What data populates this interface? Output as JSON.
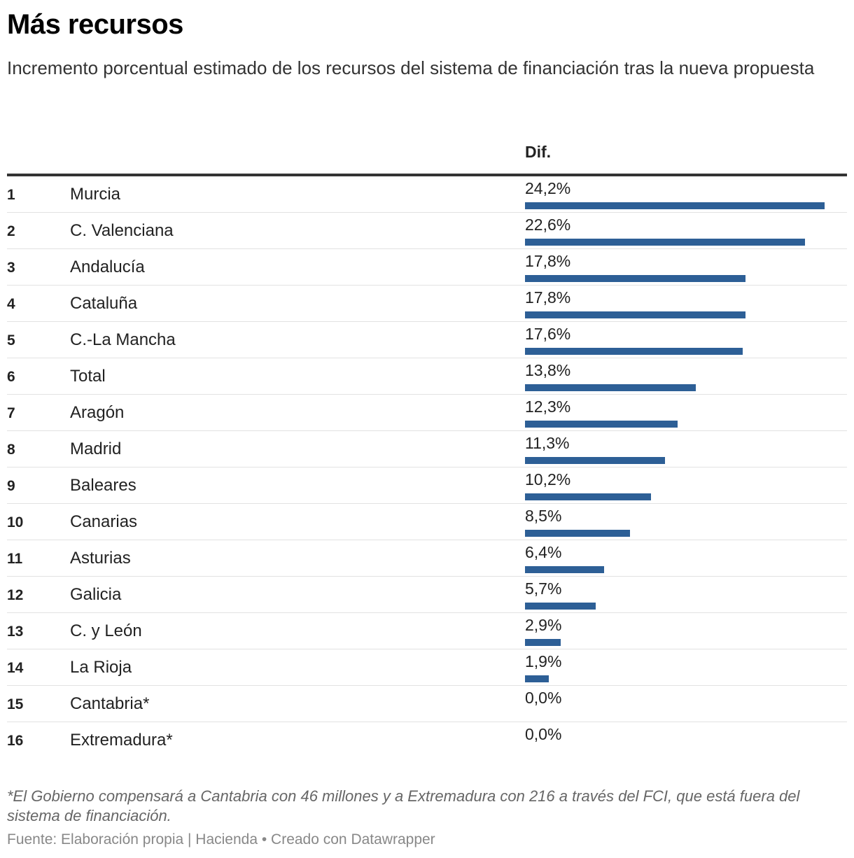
{
  "header": {
    "title": "Más recursos",
    "subtitle": "Incremento porcentual estimado de los recursos del sistema de financiación tras la nueva propuesta"
  },
  "table": {
    "value_header": "Dif."
  },
  "chart_data": {
    "type": "bar",
    "orientation": "horizontal",
    "title": "Más recursos",
    "subtitle": "Incremento porcentual estimado de los recursos del sistema de financiación tras la nueva propuesta",
    "column_header": "Dif.",
    "bar_color": "#2d5f96",
    "xlim": [
      0,
      24.2
    ],
    "rows": [
      {
        "rank": "1",
        "name": "Murcia",
        "value": 24.2,
        "label": "24,2%"
      },
      {
        "rank": "2",
        "name": "C. Valenciana",
        "value": 22.6,
        "label": "22,6%"
      },
      {
        "rank": "3",
        "name": "Andalucía",
        "value": 17.8,
        "label": "17,8%"
      },
      {
        "rank": "4",
        "name": "Cataluña",
        "value": 17.8,
        "label": "17,8%"
      },
      {
        "rank": "5",
        "name": "C.-La Mancha",
        "value": 17.6,
        "label": "17,6%"
      },
      {
        "rank": "6",
        "name": "Total",
        "value": 13.8,
        "label": "13,8%"
      },
      {
        "rank": "7",
        "name": "Aragón",
        "value": 12.3,
        "label": "12,3%"
      },
      {
        "rank": "8",
        "name": "Madrid",
        "value": 11.3,
        "label": "11,3%"
      },
      {
        "rank": "9",
        "name": "Baleares",
        "value": 10.2,
        "label": "10,2%"
      },
      {
        "rank": "10",
        "name": "Canarias",
        "value": 8.5,
        "label": "8,5%"
      },
      {
        "rank": "11",
        "name": "Asturias",
        "value": 6.4,
        "label": "6,4%"
      },
      {
        "rank": "12",
        "name": "Galicia",
        "value": 5.7,
        "label": "5,7%"
      },
      {
        "rank": "13",
        "name": "C. y León",
        "value": 2.9,
        "label": "2,9%"
      },
      {
        "rank": "14",
        "name": "La Rioja",
        "value": 1.9,
        "label": "1,9%"
      },
      {
        "rank": "15",
        "name": "Cantabria*",
        "value": 0.0,
        "label": "0,0%"
      },
      {
        "rank": "16",
        "name": "Extremadura*",
        "value": 0.0,
        "label": "0,0%"
      }
    ]
  },
  "footer": {
    "note": "*El Gobierno compensará a Cantabria con 46 millones y a Extremadura con 216 a través del FCI, que está fuera del sistema de financiación.",
    "source": "Fuente: Elaboración propia | Hacienda • Creado con Datawrapper"
  }
}
